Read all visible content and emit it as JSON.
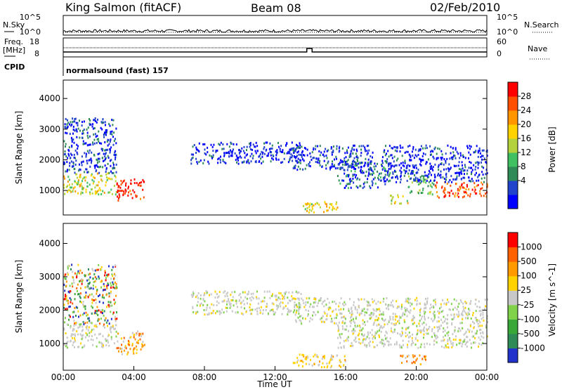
{
  "header": {
    "station": "King Salmon (fitACF)",
    "beam": "Beam 08",
    "date": "02/Feb/2010"
  },
  "status": {
    "nsky_label": "N.Sky",
    "nsearch_label": "N.Search",
    "nsky_ticks": [
      "10^5",
      "10^0"
    ],
    "nsearch_ticks": [
      "10^5",
      "10^0"
    ],
    "freq_label_1": "Freq.",
    "freq_label_2": "[MHz]",
    "freq_ticks": [
      "18",
      "8"
    ],
    "nave_label": "Nave",
    "nave_ticks": [
      "60",
      "0"
    ],
    "cpid_label": "CPID",
    "cpid_text": "normalsound (fast) 157"
  },
  "chart_data": [
    {
      "type": "heatmap",
      "title": "",
      "xlabel": "Time UT",
      "ylabel": "Slant Range [km]",
      "x_ticks": [
        "00:00",
        "04:00",
        "08:00",
        "12:00",
        "16:00",
        "20:00",
        "00:00"
      ],
      "y_ticks": [
        "1000",
        "2000",
        "3000",
        "4000"
      ],
      "ylim": [
        200,
        4600
      ],
      "colorbar": {
        "label": "Power [dB]",
        "ticks": [
          "28",
          "24",
          "20",
          "16",
          "12",
          "8",
          "4"
        ],
        "colors": [
          "#0000ff",
          "#2244cc",
          "#2e8b57",
          "#40c060",
          "#b4d23c",
          "#ffd200",
          "#ff9600",
          "#ff5000",
          "#ff0000"
        ]
      },
      "regions": [
        {
          "t": [
            0.0,
            3.0
          ],
          "r": [
            900,
            1600
          ],
          "level": 0.55
        },
        {
          "t": [
            0.0,
            3.0
          ],
          "r": [
            1600,
            3400
          ],
          "level": 0.15
        },
        {
          "t": [
            3.0,
            4.6
          ],
          "r": [
            700,
            1400
          ],
          "level": 0.95
        },
        {
          "t": [
            7.2,
            13.5
          ],
          "r": [
            1900,
            2600
          ],
          "level": 0.1
        },
        {
          "t": [
            13.5,
            15.5
          ],
          "r": [
            300,
            700
          ],
          "level": 0.6
        },
        {
          "t": [
            13.0,
            17.5
          ],
          "r": [
            1700,
            2500
          ],
          "level": 0.12
        },
        {
          "t": [
            15.5,
            18.5
          ],
          "r": [
            1100,
            2000
          ],
          "level": 0.2
        },
        {
          "t": [
            18.5,
            19.5
          ],
          "r": [
            600,
            900
          ],
          "level": 0.6
        },
        {
          "t": [
            19.5,
            21.0
          ],
          "r": [
            900,
            1500
          ],
          "level": 0.4
        },
        {
          "t": [
            21.0,
            24.0
          ],
          "r": [
            800,
            1300
          ],
          "level": 0.85
        },
        {
          "t": [
            18.0,
            24.0
          ],
          "r": [
            1300,
            2500
          ],
          "level": 0.1
        }
      ]
    },
    {
      "type": "heatmap",
      "title": "",
      "xlabel": "Time UT",
      "ylabel": "Slant Range [km]",
      "x_ticks": [
        "00:00",
        "04:00",
        "08:00",
        "12:00",
        "16:00",
        "20:00",
        "00:00"
      ],
      "y_ticks": [
        "1000",
        "2000",
        "3000",
        "4000"
      ],
      "ylim": [
        200,
        4600
      ],
      "colorbar": {
        "label": "Velocity [m s^-1]",
        "ticks": [
          "1000",
          "500",
          "100",
          "25",
          "-25",
          "-100",
          "-500",
          "-1000"
        ],
        "colors": [
          "#2233cc",
          "#2e8b57",
          "#38a838",
          "#7fd24a",
          "#c8c8c8",
          "#ffd200",
          "#ff9a00",
          "#ff6000",
          "#ff0000"
        ]
      },
      "regions": [
        {
          "t": [
            0.0,
            3.0
          ],
          "r": [
            900,
            1600
          ],
          "level": "gray"
        },
        {
          "t": [
            0.0,
            3.0
          ],
          "r": [
            1600,
            3400
          ],
          "level": "mixed"
        },
        {
          "t": [
            3.0,
            4.6
          ],
          "r": [
            700,
            1400
          ],
          "level": "orange"
        },
        {
          "t": [
            7.2,
            13.5
          ],
          "r": [
            1900,
            2600
          ],
          "level": "gray"
        },
        {
          "t": [
            13.0,
            16.0
          ],
          "r": [
            300,
            700
          ],
          "level": "yellow"
        },
        {
          "t": [
            13.0,
            24.0
          ],
          "r": [
            1600,
            2400
          ],
          "level": "gray"
        },
        {
          "t": [
            15.5,
            24.0
          ],
          "r": [
            900,
            1600
          ],
          "level": "gray"
        },
        {
          "t": [
            19.0,
            20.5
          ],
          "r": [
            400,
            700
          ],
          "level": "orange"
        }
      ]
    }
  ]
}
